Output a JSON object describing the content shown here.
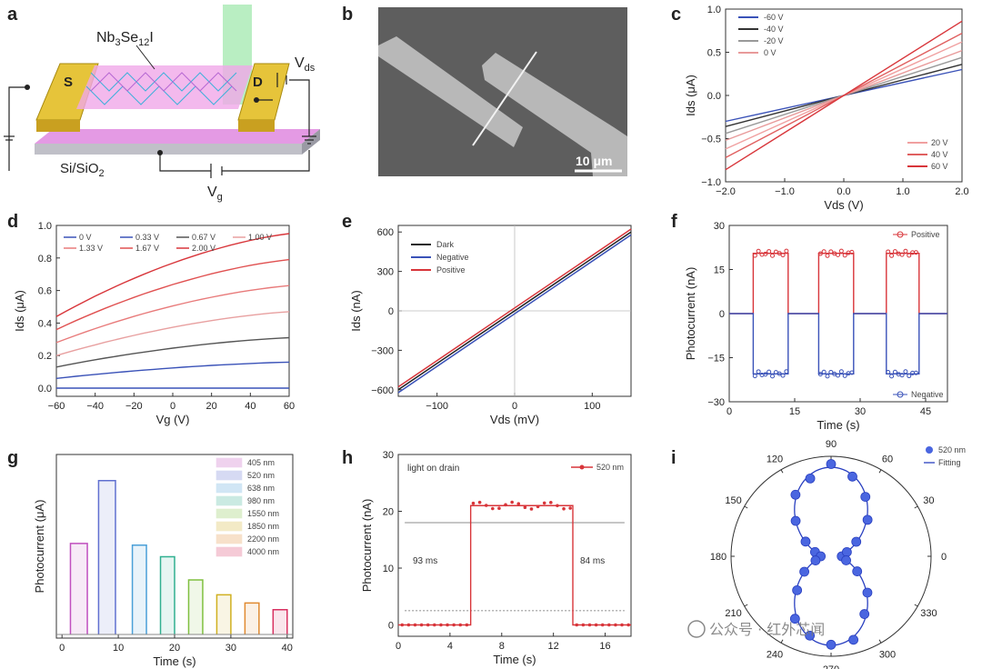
{
  "panel_letters": [
    "a",
    "b",
    "c",
    "d",
    "e",
    "f",
    "g",
    "h",
    "i"
  ],
  "panel_a": {
    "material": "Nb3Se12I",
    "material_base": "Nb",
    "material_sub1": "3",
    "material_mid": "Se",
    "material_sub2": "12",
    "material_end": "I",
    "source": "S",
    "drain": "D",
    "vds": "V",
    "vds_sub": "ds",
    "substrate": "Si/SiO",
    "substrate_sub": "2",
    "vg": "V",
    "vg_sub": "g"
  },
  "panel_b": {
    "scale_bar": "10 μm"
  },
  "watermark": "公众号 · 红外芯闻",
  "colors": {
    "blue": "#3a52b8",
    "red": "#d8353a",
    "pink": "#f08a8a",
    "gray": "#555555"
  },
  "chart_data": [
    {
      "id": "c",
      "type": "line",
      "xlabel": "Vds (V)",
      "ylabel": "Ids (μA)",
      "xlim": [
        -2.0,
        2.0
      ],
      "ylim": [
        -1.0,
        1.0
      ],
      "xticks": [
        "−2.0",
        "−1.0",
        "0.0",
        "1.0",
        "2.0"
      ],
      "yticks": [
        "−1.0",
        "−0.5",
        "0.0",
        "0.5",
        "1.0"
      ],
      "legend_top": [
        "-60 V",
        "-40 V",
        "-20 V",
        "0 V"
      ],
      "legend_bottom": [
        "20 V",
        "40 V",
        "60 V"
      ],
      "series": [
        {
          "name": "-60 V",
          "slope": 0.15,
          "color": "#3a52b8"
        },
        {
          "name": "-40 V",
          "slope": 0.18,
          "color": "#333333"
        },
        {
          "name": "-20 V",
          "slope": 0.22,
          "color": "#999999"
        },
        {
          "name": "0 V",
          "slope": 0.26,
          "color": "#e89a9a"
        },
        {
          "name": "20 V",
          "slope": 0.31,
          "color": "#f0a0a0"
        },
        {
          "name": "40 V",
          "slope": 0.36,
          "color": "#e06060"
        },
        {
          "name": "60 V",
          "slope": 0.43,
          "color": "#d8353a"
        }
      ]
    },
    {
      "id": "d",
      "type": "line",
      "xlabel": "Vg (V)",
      "ylabel": "Ids (μA)",
      "xlim": [
        -60,
        60
      ],
      "ylim": [
        -0.05,
        1.0
      ],
      "xticks": [
        "−60",
        "−40",
        "−20",
        "0",
        "20",
        "40",
        "60"
      ],
      "yticks": [
        "0.0",
        "0.2",
        "0.4",
        "0.6",
        "0.8",
        "1.0"
      ],
      "legend": [
        "0 V",
        "0.33 V",
        "0.67 V",
        "1.00 V",
        "1.33 V",
        "1.67 V",
        "2.00 V"
      ],
      "series": [
        {
          "name": "0 V",
          "y0": 0.0,
          "y1": 0.0,
          "color": "#3a52b8"
        },
        {
          "name": "0.33 V",
          "y0": 0.06,
          "y1": 0.16,
          "color": "#3a52b8"
        },
        {
          "name": "0.67 V",
          "y0": 0.13,
          "y1": 0.31,
          "color": "#555555"
        },
        {
          "name": "1.00 V",
          "y0": 0.2,
          "y1": 0.47,
          "color": "#e8a0a0"
        },
        {
          "name": "1.33 V",
          "y0": 0.28,
          "y1": 0.63,
          "color": "#e87a7a"
        },
        {
          "name": "1.67 V",
          "y0": 0.36,
          "y1": 0.79,
          "color": "#e05050"
        },
        {
          "name": "2.00 V",
          "y0": 0.44,
          "y1": 0.95,
          "color": "#d8353a"
        }
      ]
    },
    {
      "id": "e",
      "type": "line",
      "xlabel": "Vds (mV)",
      "ylabel": "Ids (nA)",
      "xlim": [
        -150,
        150
      ],
      "ylim": [
        -650,
        650
      ],
      "xticks": [
        "−100",
        "0",
        "100"
      ],
      "yticks": [
        "−600",
        "−300",
        "0",
        "300",
        "600"
      ],
      "legend": [
        "Dark",
        "Negative",
        "Positive"
      ],
      "series": [
        {
          "name": "Dark",
          "offset": 0,
          "color": "#222222"
        },
        {
          "name": "Negative",
          "offset": -22,
          "color": "#3a52b8"
        },
        {
          "name": "Positive",
          "offset": 22,
          "color": "#d8353a"
        }
      ],
      "slope": 4.0
    },
    {
      "id": "f",
      "type": "line",
      "xlabel": "Time (s)",
      "ylabel": "Photocurrent (nA)",
      "xlim": [
        0,
        50
      ],
      "ylim": [
        -30,
        30
      ],
      "xticks": [
        "0",
        "15",
        "30",
        "45"
      ],
      "yticks": [
        "−30",
        "−15",
        "0",
        "15",
        "30"
      ],
      "legend_positive": "Positive",
      "legend_negative": "Negative",
      "on_intervals": [
        [
          5.5,
          13.5
        ],
        [
          20.5,
          28.5
        ],
        [
          36,
          43.5
        ]
      ],
      "level_positive": 20.5,
      "level_negative": -20.5
    },
    {
      "id": "g",
      "type": "bar",
      "xlabel": "Time (s)",
      "ylabel": "Photocurrent (μA)",
      "xlim": [
        -1,
        41
      ],
      "xticks": [
        "0",
        "10",
        "20",
        "30",
        "40"
      ],
      "legend": [
        "405 nm",
        "520 nm",
        "638 nm",
        "980 nm",
        "1550 nm",
        "1850 nm",
        "2200 nm",
        "4000 nm"
      ],
      "pulses": [
        {
          "t0": 1.5,
          "t1": 4.5,
          "value": 0.55,
          "color": "#c04fbf"
        },
        {
          "t0": 6.5,
          "t1": 9.5,
          "value": 0.93,
          "color": "#6070d0"
        },
        {
          "t0": 12.5,
          "t1": 15,
          "value": 0.54,
          "color": "#4aa0d8"
        },
        {
          "t0": 17.5,
          "t1": 20,
          "value": 0.47,
          "color": "#30b090"
        },
        {
          "t0": 22.5,
          "t1": 25,
          "value": 0.33,
          "color": "#80c040"
        },
        {
          "t0": 27.5,
          "t1": 30,
          "value": 0.24,
          "color": "#d0b020"
        },
        {
          "t0": 32.5,
          "t1": 35,
          "value": 0.19,
          "color": "#e08a30"
        },
        {
          "t0": 37.5,
          "t1": 40,
          "value": 0.15,
          "color": "#d83060"
        }
      ]
    },
    {
      "id": "h",
      "type": "line",
      "xlabel": "Time (s)",
      "ylabel": "Photocurrent (nA)",
      "xlim": [
        0,
        18
      ],
      "ylim": [
        -2,
        30
      ],
      "xticks": [
        "0",
        "4",
        "8",
        "12",
        "16"
      ],
      "yticks": [
        "0",
        "10",
        "20",
        "30"
      ],
      "legend": "520 nm",
      "annotation": "light on drain",
      "rise_label": "93 ms",
      "fall_label": "84 ms",
      "on": [
        5.6,
        13.5
      ],
      "level": 21,
      "ref_high": 18,
      "ref_low": 2.5
    },
    {
      "id": "i",
      "type": "scatter",
      "legend_data": "520 nm",
      "legend_fit": "Fitting",
      "angle_labels": [
        "90",
        "60",
        "30",
        "0",
        "330",
        "300",
        "270",
        "240",
        "210",
        "180",
        "150",
        "120"
      ],
      "angles_deg": [
        0,
        15,
        30,
        45,
        60,
        75,
        90,
        105,
        120,
        135,
        150,
        165,
        180,
        195,
        210,
        225,
        240,
        255,
        270,
        285,
        300,
        315,
        330,
        345
      ],
      "r_min": 0.12,
      "r_max": 1.0
    }
  ]
}
